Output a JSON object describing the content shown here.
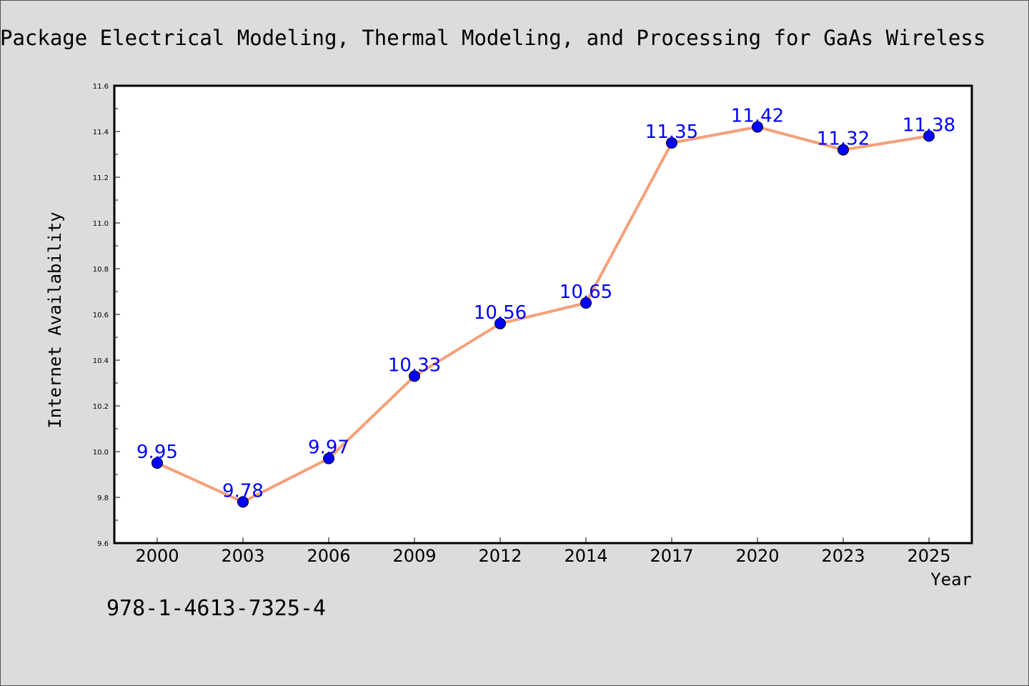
{
  "title": "Package Electrical Modeling, Thermal Modeling, and Processing for GaAs Wireless",
  "footnote": "978-1-4613-7325-4",
  "colors": {
    "background": "#dcdcdc",
    "plot_background": "#ffffff",
    "line": "#f4a07a",
    "marker": "#0000ff",
    "data_label": "#0000ff"
  },
  "chart_data": {
    "type": "line",
    "xlabel": "Year",
    "ylabel": "Internet Availability",
    "categories": [
      "2000",
      "2003",
      "2006",
      "2009",
      "2012",
      "2014",
      "2017",
      "2020",
      "2023",
      "2025"
    ],
    "series": [
      {
        "values": [
          9.95,
          9.78,
          9.97,
          10.33,
          10.56,
          10.65,
          11.35,
          11.42,
          11.32,
          11.38
        ]
      }
    ],
    "data_labels": [
      "9.95",
      "9.78",
      "9.97",
      "10.33",
      "10.56",
      "10.65",
      "11.35",
      "11.42",
      "11.32",
      "11.38"
    ],
    "ylim": [
      9.6,
      11.6
    ],
    "yticks": [
      "9.6",
      "9.8",
      "10.0",
      "10.2",
      "10.4",
      "10.6",
      "10.8",
      "11.0",
      "11.2",
      "11.4",
      "11.6"
    ],
    "grid": false,
    "legend": false
  }
}
